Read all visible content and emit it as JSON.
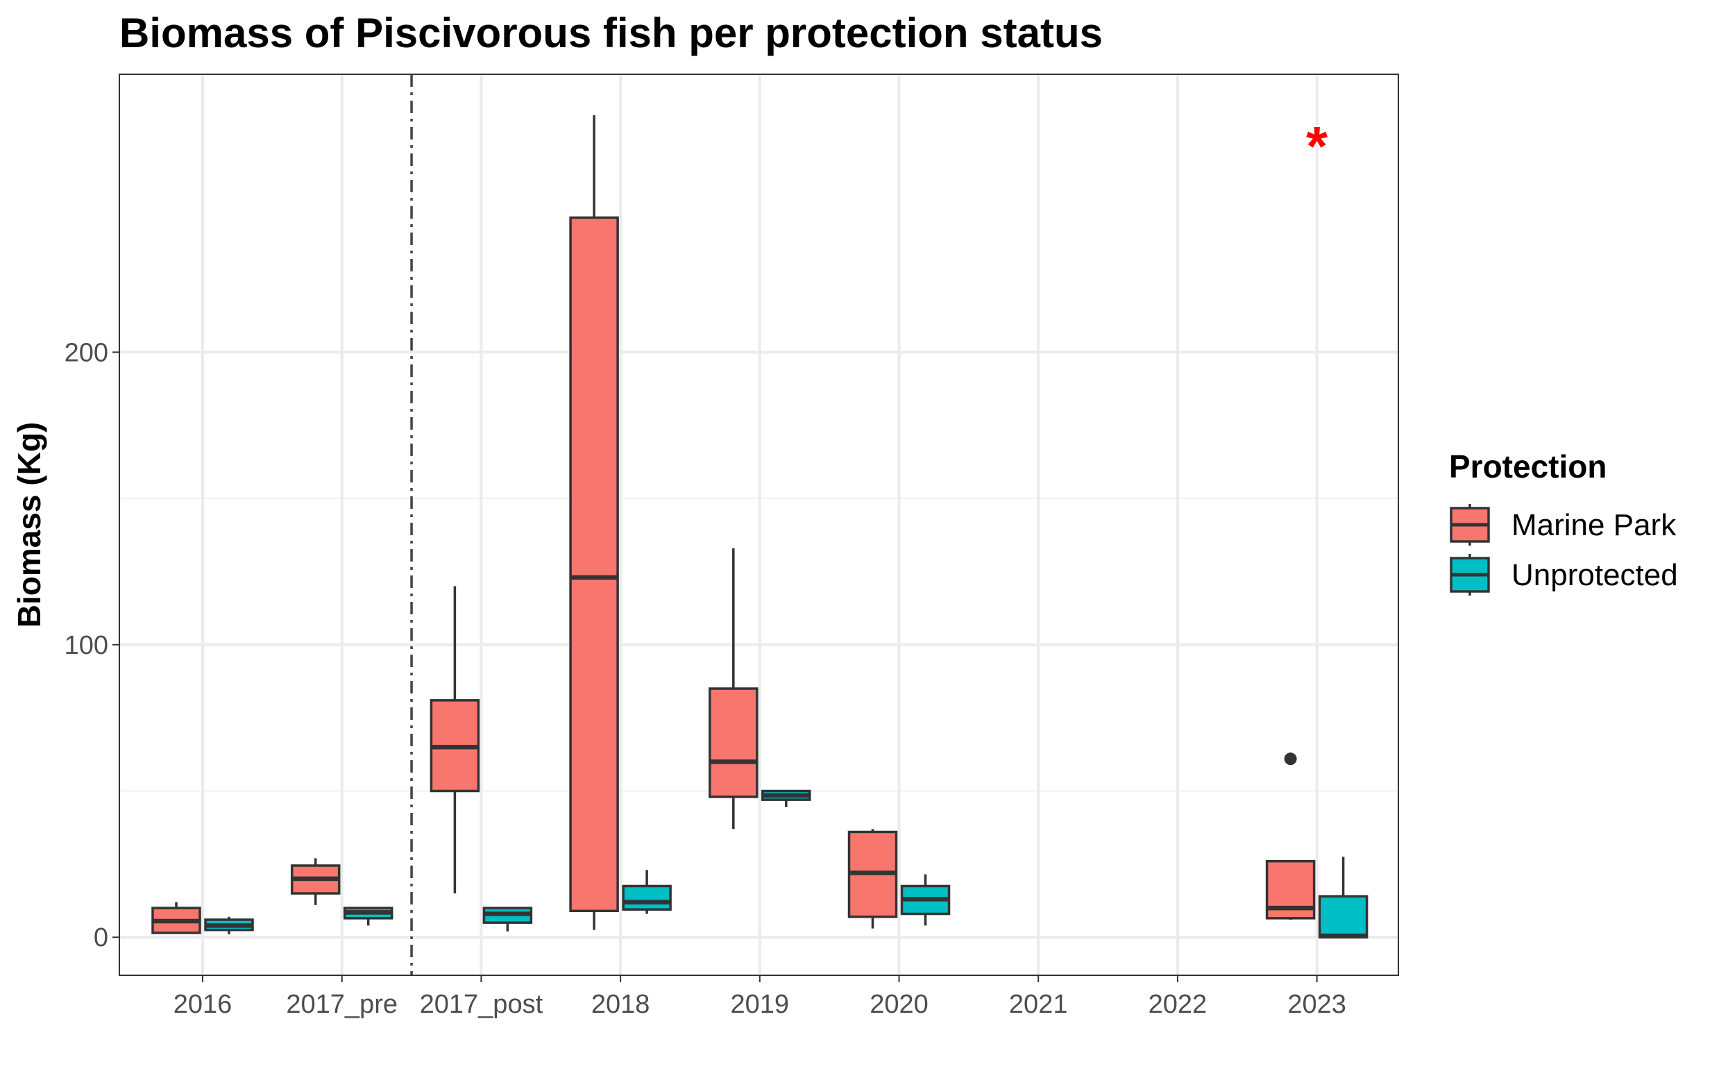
{
  "chart_data": {
    "type": "boxplot",
    "title": "Biomass of Piscivorous fish per protection status",
    "xlabel": "",
    "ylabel": "Biomass (Kg)",
    "categories": [
      "2016",
      "2017_pre",
      "2017_post",
      "2018",
      "2019",
      "2020",
      "2021",
      "2022",
      "2023"
    ],
    "ylim": [
      -13,
      295
    ],
    "yticks": [
      0,
      100,
      200
    ],
    "grid": true,
    "legend": {
      "title": "Protection",
      "position": "right"
    },
    "divider_between": [
      "2017_pre",
      "2017_post"
    ],
    "series": [
      {
        "name": "Marine Park",
        "color": "#F8766D",
        "boxes": [
          {
            "category": "2016",
            "min": 1.5,
            "q1": 1.5,
            "median": 5.5,
            "q3": 10,
            "max": 12
          },
          {
            "category": "2017_pre",
            "min": 11,
            "q1": 15,
            "median": 20,
            "q3": 24.5,
            "max": 27
          },
          {
            "category": "2017_post",
            "min": 15,
            "q1": 50,
            "median": 65,
            "q3": 81,
            "max": 120
          },
          {
            "category": "2018",
            "min": 2.5,
            "q1": 9,
            "median": 123,
            "q3": 246,
            "max": 281
          },
          {
            "category": "2019",
            "min": 37,
            "q1": 48,
            "median": 60,
            "q3": 85,
            "max": 133
          },
          {
            "category": "2020",
            "min": 3,
            "q1": 7,
            "median": 22,
            "q3": 36,
            "max": 37
          },
          {
            "category": "2023",
            "min": 6,
            "q1": 6.5,
            "median": 10,
            "q3": 26,
            "max": 26,
            "outliers": [
              61
            ]
          }
        ]
      },
      {
        "name": "Unprotected",
        "color": "#00BFC4",
        "boxes": [
          {
            "category": "2016",
            "min": 1,
            "q1": 2.5,
            "median": 4,
            "q3": 6,
            "max": 7
          },
          {
            "category": "2017_pre",
            "min": 4,
            "q1": 6.5,
            "median": 8.5,
            "q3": 10,
            "max": 10
          },
          {
            "category": "2017_post",
            "min": 2,
            "q1": 5,
            "median": 8,
            "q3": 10,
            "max": 10
          },
          {
            "category": "2018",
            "min": 8,
            "q1": 9.5,
            "median": 12,
            "q3": 17.5,
            "max": 23
          },
          {
            "category": "2019",
            "min": 44.5,
            "q1": 47,
            "median": 48.5,
            "q3": 50,
            "max": 50
          },
          {
            "category": "2020",
            "min": 4,
            "q1": 8,
            "median": 13,
            "q3": 17.5,
            "max": 21.5
          },
          {
            "category": "2023",
            "min": 0,
            "q1": 0,
            "median": 0.5,
            "q3": 14,
            "max": 27.5
          }
        ]
      }
    ],
    "annotations": [
      {
        "text": "*",
        "category": "2023",
        "y": 272,
        "color": "#ff0000"
      }
    ]
  }
}
